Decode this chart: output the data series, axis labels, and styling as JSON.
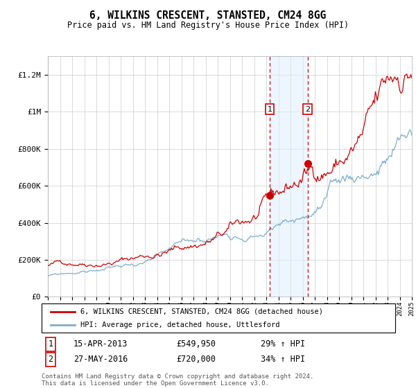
{
  "title": "6, WILKINS CRESCENT, STANSTED, CM24 8GG",
  "subtitle": "Price paid vs. HM Land Registry's House Price Index (HPI)",
  "yticks": [
    0,
    200000,
    400000,
    600000,
    800000,
    1000000,
    1200000
  ],
  "ylim": [
    0,
    1300000
  ],
  "xstart": 1995,
  "xend": 2025,
  "sale1_date": "15-APR-2013",
  "sale1_price": 549950,
  "sale1_x": 2013.29,
  "sale2_date": "27-MAY-2016",
  "sale2_price": 720000,
  "sale2_x": 2016.41,
  "legend_line1": "6, WILKINS CRESCENT, STANSTED, CM24 8GG (detached house)",
  "legend_line2": "HPI: Average price, detached house, Uttlesford",
  "footnote1": "Contains HM Land Registry data © Crown copyright and database right 2024.",
  "footnote2": "This data is licensed under the Open Government Licence v3.0.",
  "red_color": "#cc0000",
  "blue_color": "#7aadcc",
  "shade_color": "#ddeeff",
  "grid_color": "#cccccc",
  "box_label1_pct": "29%",
  "box_label2_pct": "34%"
}
